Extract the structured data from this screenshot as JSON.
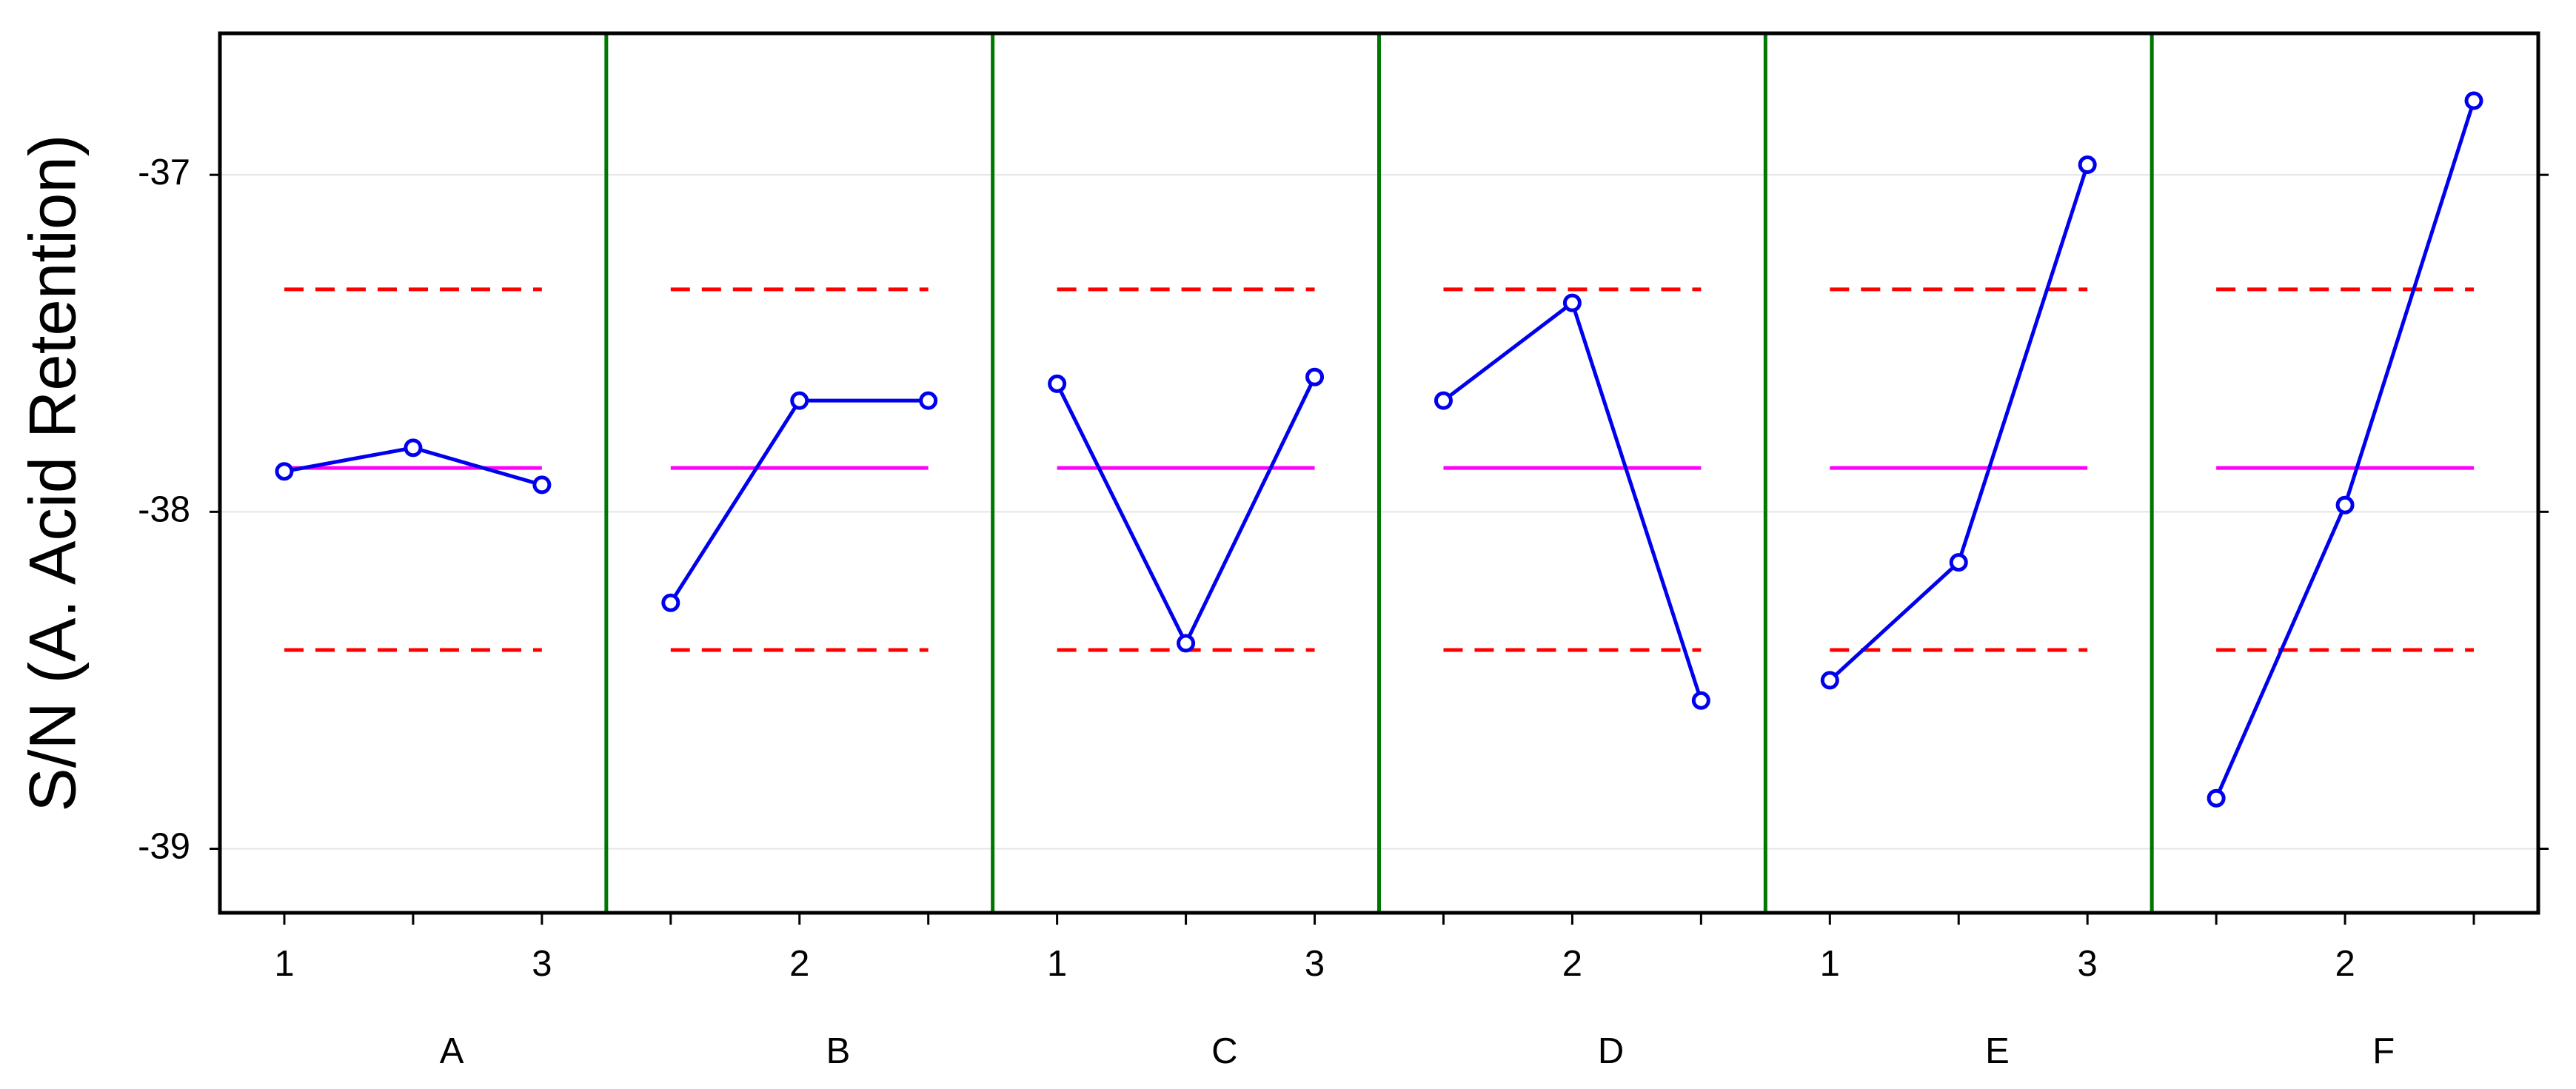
{
  "chart_data": {
    "type": "main-effects",
    "y_label": "S/N (A. Acid Retention)",
    "categories": [
      "1",
      null,
      "3",
      null,
      "2",
      null,
      "1",
      null,
      "3",
      null,
      "2",
      null,
      "1",
      null,
      "3",
      null,
      "2",
      null
    ],
    "groups": [
      {
        "name": "A",
        "values": [
          -37.88,
          -37.81,
          -37.92
        ]
      },
      {
        "name": "B",
        "values": [
          -38.27,
          -37.67,
          -37.67
        ]
      },
      {
        "name": "C",
        "values": [
          -37.62,
          -38.39,
          -37.6
        ]
      },
      {
        "name": "D",
        "values": [
          -37.67,
          -37.38,
          -38.56
        ]
      },
      {
        "name": "E",
        "values": [
          -38.5,
          -38.15,
          -36.97
        ]
      },
      {
        "name": "F",
        "values": [
          -38.85,
          -37.98,
          -36.78
        ]
      }
    ],
    "mean": -37.87,
    "upper_limit": -37.34,
    "lower_limit": -38.41,
    "line_color": "#0000ee",
    "mean_color": "#ff00ff",
    "limit_color": "#ff0000",
    "separator_color": "#007700",
    "ylim": [
      -39.19,
      -36.58
    ],
    "yticks": [
      -39,
      -38,
      -37
    ],
    "grid": true
  }
}
